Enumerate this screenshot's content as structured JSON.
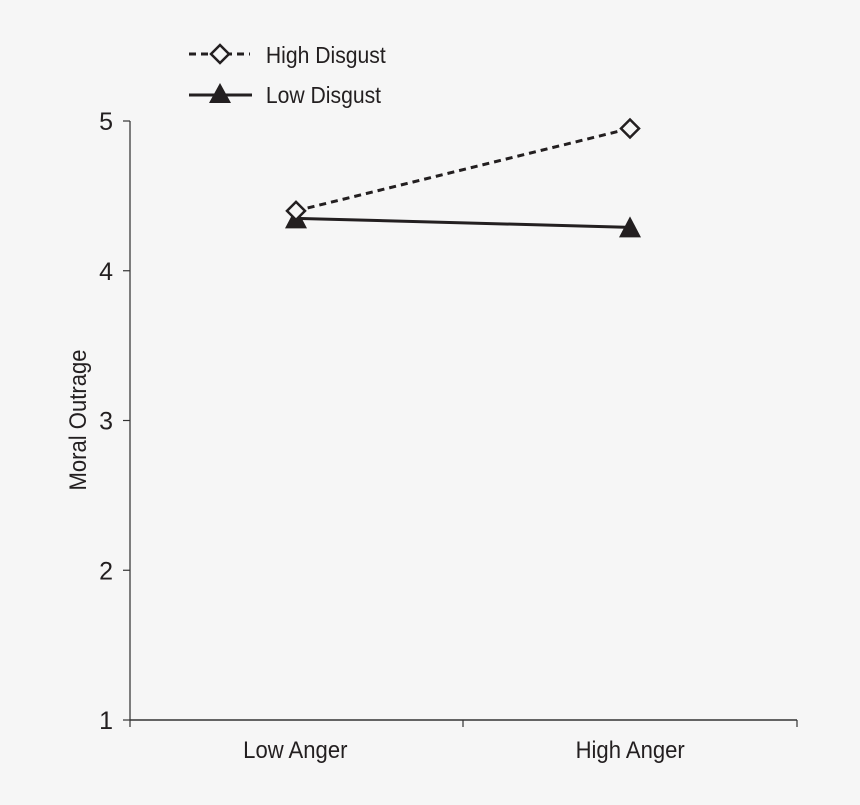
{
  "chart_data": {
    "type": "line",
    "title": "",
    "xlabel": "",
    "ylabel": "Moral Outrage",
    "categories": [
      "Low Anger",
      "High Anger"
    ],
    "series": [
      {
        "name": "High Disgust",
        "values": [
          4.4,
          4.95
        ],
        "marker": "open-diamond",
        "line_style": "dashed"
      },
      {
        "name": "Low Disgust",
        "values": [
          4.35,
          4.29
        ],
        "marker": "filled-triangle",
        "line_style": "solid"
      }
    ],
    "ylim": [
      1,
      5
    ],
    "yticks": [
      1,
      2,
      3,
      4,
      5
    ],
    "grid": false,
    "legend_position": "top-left"
  },
  "legend": {
    "items": [
      {
        "label": "High Disgust"
      },
      {
        "label": "Low Disgust"
      }
    ]
  },
  "axes": {
    "y_label": "Moral Outrage",
    "y_ticks": [
      "1",
      "2",
      "3",
      "4",
      "5"
    ],
    "x_ticks": [
      "Low Anger",
      "High Anger"
    ]
  },
  "colors": {
    "background": "#f6f6f6",
    "ink": "#231f20",
    "axis": "#555555"
  }
}
